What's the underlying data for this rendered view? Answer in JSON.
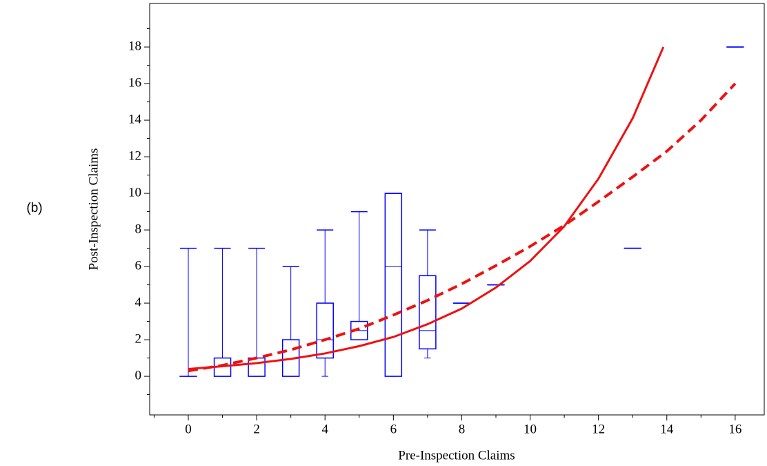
{
  "chart_data": {
    "type": "box",
    "side_label": "(b)",
    "xlabel": "Pre-Inspection Claims",
    "ylabel": "Post-Inspection Claims",
    "xlim": [
      -1.13,
      16.85
    ],
    "ylim": [
      -2.11,
      20.38
    ],
    "xticks": [
      0,
      2,
      4,
      6,
      8,
      10,
      12,
      14,
      16
    ],
    "yticks": [
      0,
      2,
      4,
      6,
      8,
      10,
      12,
      14,
      16,
      18
    ],
    "xminorticks": [
      -1,
      1,
      3,
      5,
      7,
      9,
      11,
      13,
      15
    ],
    "yminorticks": [
      -1,
      1,
      3,
      5,
      7,
      9,
      11,
      13,
      15,
      17,
      19
    ],
    "box_color": "#0000ff",
    "boxes": [
      {
        "x": 0,
        "min": 0,
        "q1": 0,
        "median": 0,
        "q3": 0,
        "max": 7
      },
      {
        "x": 1,
        "min": 0,
        "q1": 0,
        "median": 0,
        "q3": 1,
        "max": 7
      },
      {
        "x": 2,
        "min": 0,
        "q1": 0,
        "median": 0,
        "q3": 1,
        "max": 7
      },
      {
        "x": 3,
        "min": 0,
        "q1": 0,
        "median": 0,
        "q3": 2,
        "max": 6
      },
      {
        "x": 4,
        "min": 0,
        "q1": 1,
        "median": 2,
        "q3": 4,
        "max": 8
      },
      {
        "x": 5,
        "min": 2,
        "q1": 2,
        "median": 2.5,
        "q3": 3,
        "max": 9
      },
      {
        "x": 6,
        "min": 0,
        "q1": 0,
        "median": 6,
        "q3": 10,
        "max": 10
      },
      {
        "x": 7,
        "min": 1,
        "q1": 1.5,
        "median": 2.5,
        "q3": 5.5,
        "max": 8
      },
      {
        "x": 8,
        "min": 4,
        "q1": 4,
        "median": 4,
        "q3": 4,
        "max": 4
      },
      {
        "x": 9,
        "min": 5,
        "q1": 5,
        "median": 5,
        "q3": 5,
        "max": 5
      },
      {
        "x": 13,
        "min": 7,
        "q1": 7,
        "median": 7,
        "q3": 7,
        "max": 7
      },
      {
        "x": 16,
        "min": 18,
        "q1": 18,
        "median": 18,
        "q3": 18,
        "max": 18
      }
    ],
    "lines": [
      {
        "color": "#ee1111",
        "dashed": false,
        "x": [
          0,
          1,
          2,
          3,
          4,
          5,
          6,
          7,
          8,
          9,
          10,
          11,
          12,
          13,
          13.9
        ],
        "values": [
          0.4,
          0.55,
          0.72,
          0.95,
          1.25,
          1.65,
          2.15,
          2.85,
          3.7,
          4.85,
          6.3,
          8.2,
          10.8,
          14.1,
          18
        ]
      },
      {
        "color": "#ee1111",
        "dashed": true,
        "x": [
          0,
          1,
          2,
          3,
          4,
          5,
          6,
          7,
          8,
          9,
          10,
          11,
          12,
          13,
          14,
          15,
          16
        ],
        "values": [
          0.3,
          0.6,
          1.0,
          1.45,
          2.0,
          2.6,
          3.35,
          4.15,
          5.05,
          6.05,
          7.1,
          8.25,
          9.55,
          10.9,
          12.3,
          14.0,
          16.0
        ]
      }
    ]
  }
}
